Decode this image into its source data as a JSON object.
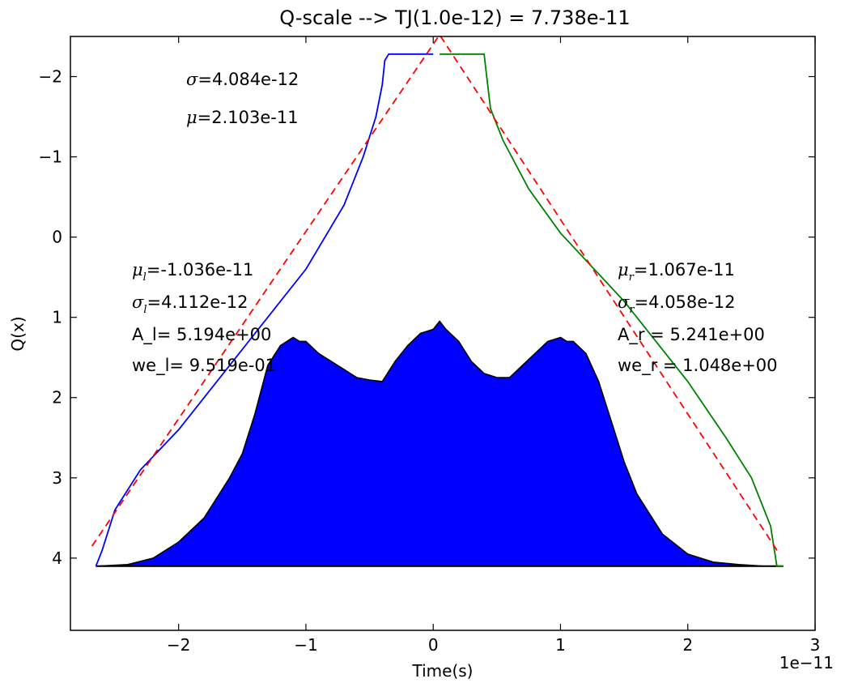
{
  "chart_data": {
    "type": "line",
    "title": "Q-scale --> TJ(1.0e-12) = 7.738e-11",
    "xlabel": "Time(s)",
    "ylabel": "Q(x)",
    "x_offset_label": "1e−11",
    "xlim": [
      -2.85,
      3.0
    ],
    "ylim": [
      4.9,
      -2.5
    ],
    "y_inverted": true,
    "x_ticks": [
      -2,
      -1,
      0,
      1,
      2,
      3
    ],
    "x_tick_labels": [
      "−2",
      "−1",
      "0",
      "1",
      "2",
      "3"
    ],
    "y_ticks": [
      -2,
      -1,
      0,
      1,
      2,
      3,
      4
    ],
    "y_tick_labels": [
      "−2",
      "−1",
      "0",
      "1",
      "2",
      "3",
      "4"
    ],
    "grid": false,
    "legend": "none",
    "annotations": {
      "sigma": "=4.084e-12",
      "mu": "=2.103e-11",
      "mu_l": "=-1.036e-11",
      "sigma_l": "=4.112e-12",
      "A_l": "A_l= 5.194e+00",
      "we_l": "we_l= 9.519e-01",
      "mu_r": "=1.067e-11",
      "sigma_r": "=4.058e-12",
      "A_r": "A_r = 5.241e+00",
      "we_r": "we_r = 1.048e+00"
    },
    "series": [
      {
        "role": "histogram-area",
        "color": "#0000ff",
        "x": [
          -2.65,
          -2.4,
          -2.2,
          -2.0,
          -1.8,
          -1.6,
          -1.5,
          -1.4,
          -1.3,
          -1.2,
          -1.1,
          -1.05,
          -1.0,
          -0.9,
          -0.8,
          -0.7,
          -0.6,
          -0.5,
          -0.4,
          -0.3,
          -0.2,
          -0.1,
          0.0,
          0.05,
          0.1,
          0.2,
          0.3,
          0.4,
          0.5,
          0.6,
          0.7,
          0.8,
          0.9,
          1.0,
          1.05,
          1.1,
          1.2,
          1.3,
          1.4,
          1.5,
          1.6,
          1.8,
          2.0,
          2.2,
          2.4,
          2.6,
          2.75
        ],
        "y": [
          4.1,
          4.08,
          4.0,
          3.8,
          3.5,
          3.0,
          2.7,
          2.2,
          1.6,
          1.35,
          1.25,
          1.3,
          1.3,
          1.45,
          1.55,
          1.65,
          1.75,
          1.78,
          1.8,
          1.55,
          1.35,
          1.2,
          1.15,
          1.05,
          1.15,
          1.3,
          1.55,
          1.7,
          1.75,
          1.75,
          1.6,
          1.45,
          1.3,
          1.25,
          1.3,
          1.3,
          1.45,
          1.8,
          2.3,
          2.8,
          3.2,
          3.7,
          3.95,
          4.05,
          4.08,
          4.1,
          4.1
        ]
      },
      {
        "role": "left-curve",
        "color": "#0000ff",
        "x": [
          -2.65,
          -2.6,
          -2.5,
          -2.3,
          -2.0,
          -1.5,
          -1.0,
          -0.7,
          -0.55,
          -0.45,
          -0.4,
          -0.38,
          -0.35,
          0.0
        ],
        "y": [
          4.1,
          3.9,
          3.4,
          2.9,
          2.4,
          1.4,
          0.4,
          -0.4,
          -1.0,
          -1.5,
          -1.9,
          -2.2,
          -2.28,
          -2.28
        ]
      },
      {
        "role": "right-curve",
        "color": "#008000",
        "x": [
          0.05,
          0.4,
          0.42,
          0.45,
          0.55,
          0.75,
          1.0,
          1.5,
          2.0,
          2.3,
          2.5,
          2.65,
          2.7,
          2.75
        ],
        "y": [
          -2.28,
          -2.28,
          -2.0,
          -1.6,
          -1.2,
          -0.6,
          -0.05,
          0.8,
          1.8,
          2.5,
          3.0,
          3.6,
          4.1,
          4.1
        ]
      },
      {
        "role": "fit-line",
        "color": "#ff0000",
        "dashed": true,
        "x": [
          -2.68,
          0.05,
          2.72
        ],
        "y": [
          3.85,
          -2.52,
          3.95
        ]
      }
    ]
  }
}
